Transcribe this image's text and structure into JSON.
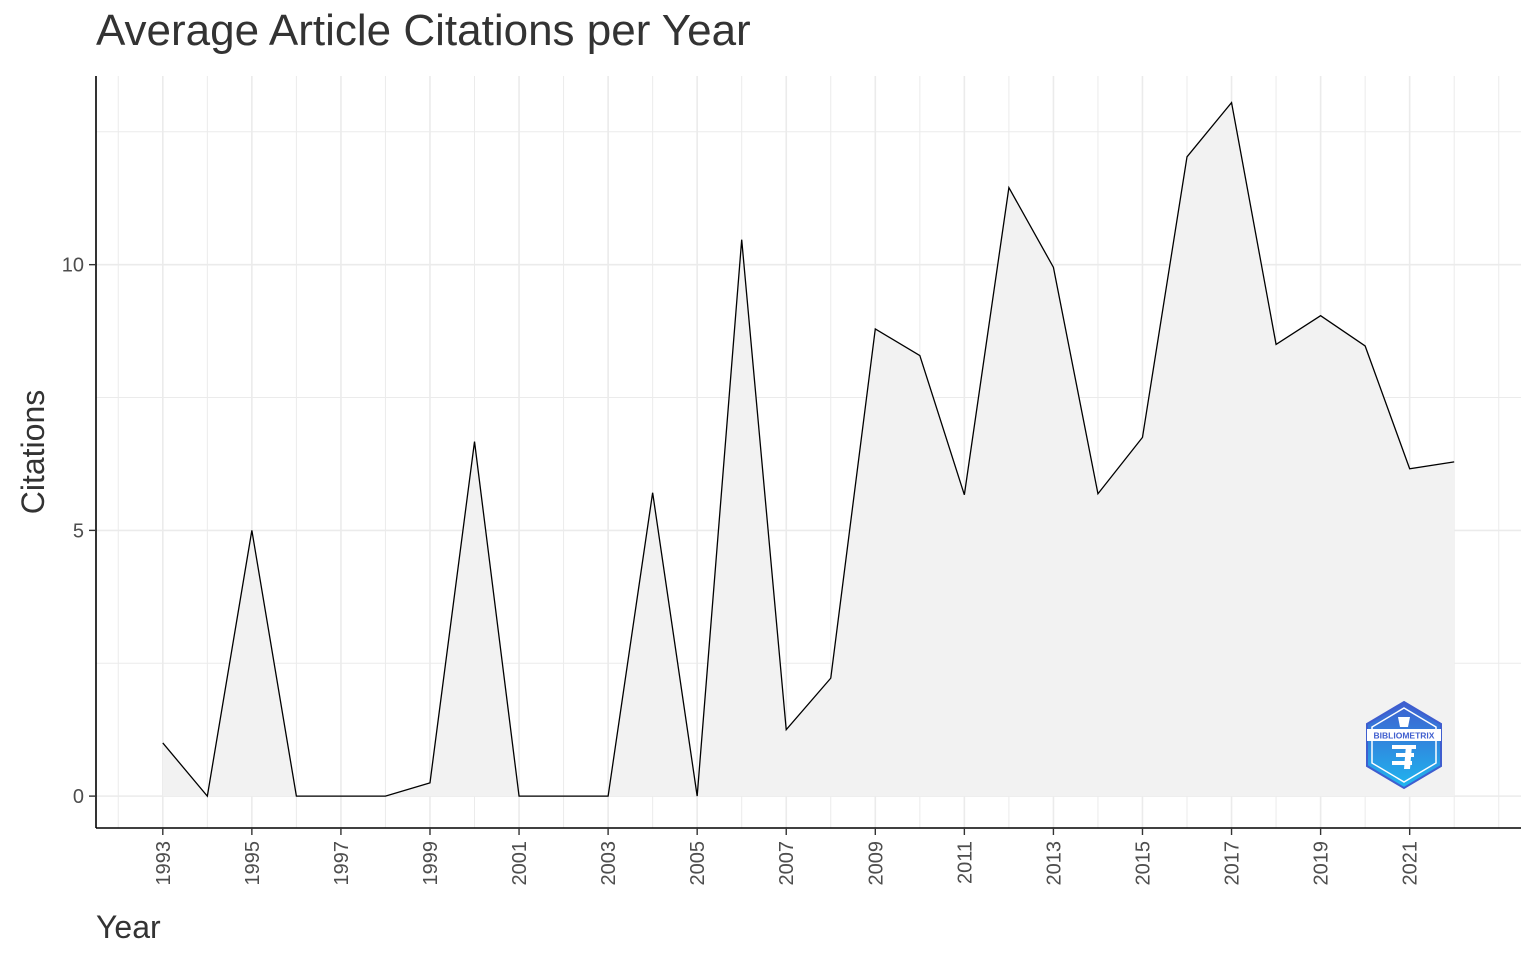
{
  "chart_data": {
    "type": "area",
    "title": "Average Article Citations per Year",
    "xlabel": "Year",
    "ylabel": "Citations",
    "x": [
      1993,
      1994,
      1995,
      1996,
      1997,
      1998,
      1999,
      2000,
      2001,
      2002,
      2003,
      2004,
      2005,
      2006,
      2007,
      2008,
      2009,
      2010,
      2011,
      2012,
      2013,
      2014,
      2015,
      2016,
      2017,
      2018,
      2019,
      2020,
      2021,
      2022
    ],
    "values": [
      1.0,
      0,
      5.0,
      0,
      0,
      0,
      0.25,
      6.67,
      0,
      0,
      0,
      5.71,
      0,
      10.47,
      1.25,
      2.22,
      8.79,
      8.29,
      5.67,
      11.45,
      9.95,
      5.69,
      6.75,
      12.03,
      13.05,
      8.5,
      9.04,
      8.47,
      6.16,
      6.29
    ],
    "xlim": [
      1991.5,
      2023.5
    ],
    "ylim": [
      -0.6,
      13.55
    ],
    "x_ticks": [
      "1993",
      "1995",
      "1997",
      "1999",
      "2001",
      "2003",
      "2005",
      "2007",
      "2009",
      "2011",
      "2013",
      "2015",
      "2017",
      "2019",
      "2021"
    ],
    "y_ticks": [
      "0",
      "5",
      "10"
    ],
    "grid": true,
    "legend": "none",
    "fill_color": "#f2f2f2",
    "line_color": "#000000",
    "grid_color": "#ebebeb"
  },
  "logo": {
    "text": "BIBLIOMETRIX",
    "colors": [
      "#3f5ecf",
      "#1fb6ef"
    ]
  }
}
